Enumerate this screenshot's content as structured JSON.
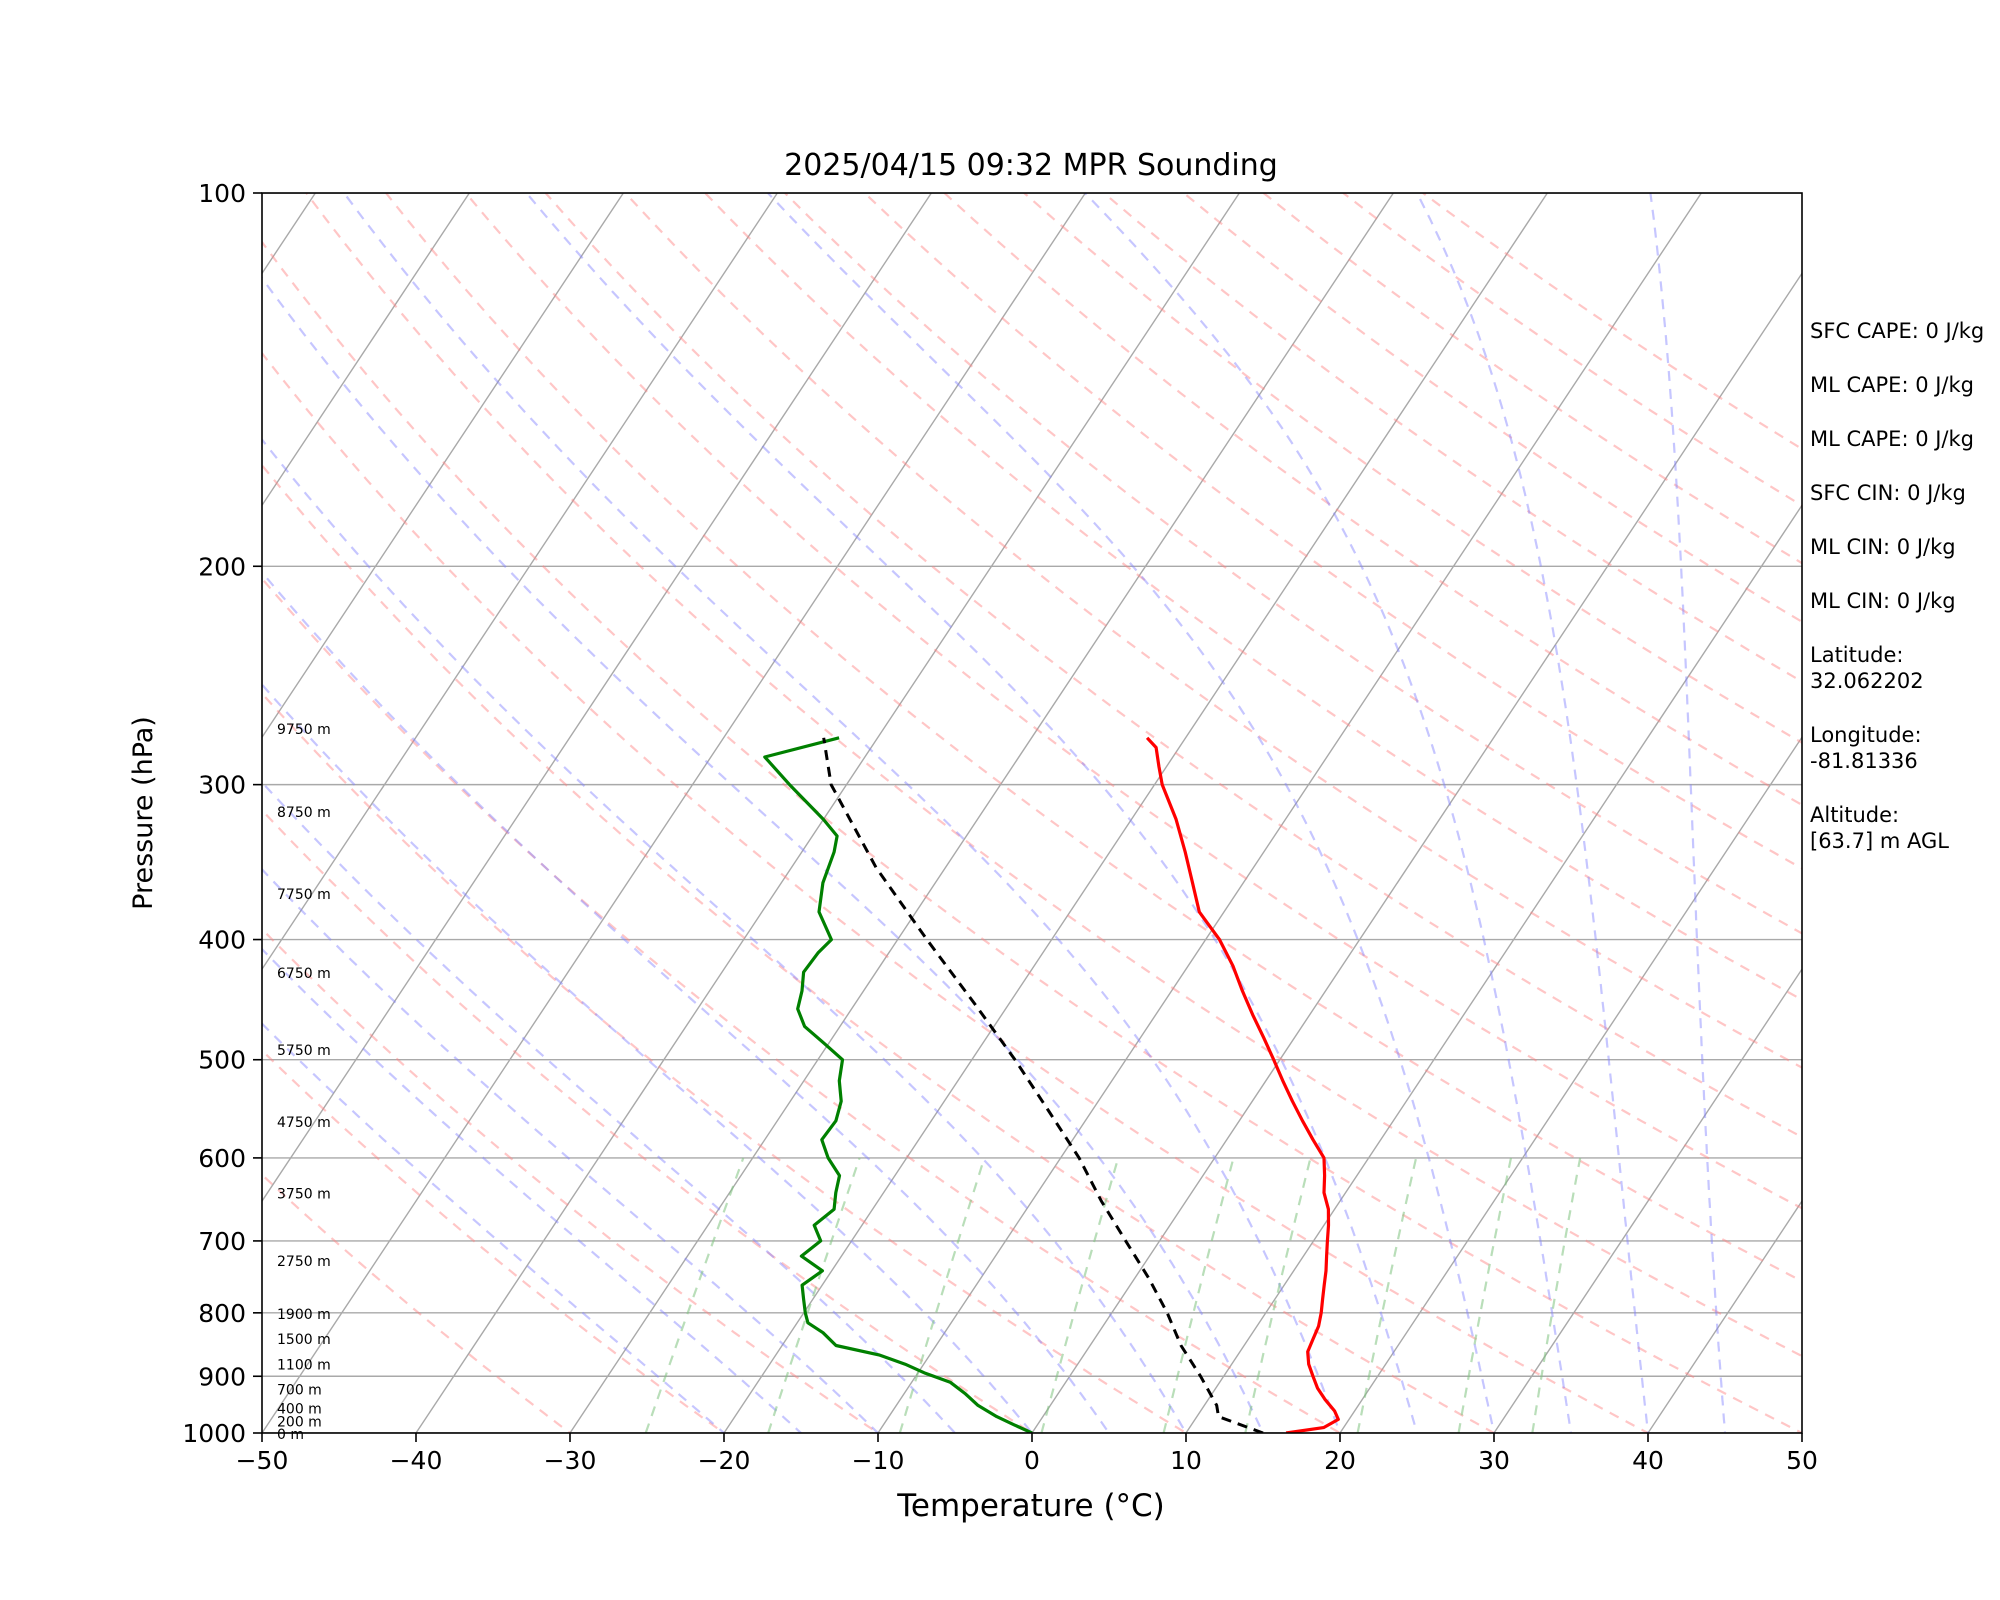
{
  "chart_data": {
    "type": "line",
    "title": "2025/04/15 09:32 MPR Sounding",
    "xlabel": "Temperature (°C)",
    "ylabel": "Pressure (hPa)",
    "xlim": [
      -50,
      50
    ],
    "ylim": [
      1000,
      100
    ],
    "y_scale": "log",
    "x_ticks": [
      "−50",
      "−40",
      "−30",
      "−20",
      "−10",
      "0",
      "10",
      "20",
      "30",
      "40",
      "50"
    ],
    "y_ticks": [
      {
        "p": 100,
        "label": "100"
      },
      {
        "p": 200,
        "label": "200"
      },
      {
        "p": 300,
        "label": "300"
      },
      {
        "p": 400,
        "label": "400"
      },
      {
        "p": 500,
        "label": "500"
      },
      {
        "p": 600,
        "label": "600"
      },
      {
        "p": 700,
        "label": "700"
      },
      {
        "p": 800,
        "label": "800"
      },
      {
        "p": 900,
        "label": "900"
      },
      {
        "p": 1000,
        "label": "1000"
      }
    ],
    "grid": true,
    "series": [
      {
        "role": "temperature",
        "color": "#ff0000",
        "points": [
          [
            1000,
            16.5
          ],
          [
            990,
            18.7
          ],
          [
            975,
            19.3
          ],
          [
            960,
            18.7
          ],
          [
            940,
            17.6
          ],
          [
            920,
            16.6
          ],
          [
            900,
            15.8
          ],
          [
            880,
            15.0
          ],
          [
            860,
            14.4
          ],
          [
            840,
            14.2
          ],
          [
            820,
            14.0
          ],
          [
            800,
            13.6
          ],
          [
            780,
            13.1
          ],
          [
            760,
            12.6
          ],
          [
            740,
            12.1
          ],
          [
            720,
            11.5
          ],
          [
            700,
            10.9
          ],
          [
            680,
            10.3
          ],
          [
            660,
            9.6
          ],
          [
            640,
            8.6
          ],
          [
            620,
            7.9
          ],
          [
            600,
            7.1
          ],
          [
            580,
            5.6
          ],
          [
            560,
            4.1
          ],
          [
            540,
            2.6
          ],
          [
            520,
            1.1
          ],
          [
            500,
            -0.4
          ],
          [
            480,
            -2.0
          ],
          [
            460,
            -3.7
          ],
          [
            440,
            -5.4
          ],
          [
            420,
            -7.1
          ],
          [
            400,
            -9.1
          ],
          [
            380,
            -11.6
          ],
          [
            360,
            -13.3
          ],
          [
            340,
            -15.1
          ],
          [
            320,
            -17.1
          ],
          [
            300,
            -19.5
          ],
          [
            290,
            -20.5
          ],
          [
            280,
            -21.5
          ],
          [
            275,
            -22.5
          ]
        ]
      },
      {
        "role": "dewpoint",
        "color": "#008000",
        "points": [
          [
            1000,
            0.0
          ],
          [
            985,
            -1.5
          ],
          [
            970,
            -3.0
          ],
          [
            950,
            -4.7
          ],
          [
            930,
            -6.0
          ],
          [
            910,
            -7.5
          ],
          [
            895,
            -9.5
          ],
          [
            880,
            -11.2
          ],
          [
            865,
            -13.3
          ],
          [
            850,
            -16.5
          ],
          [
            830,
            -17.9
          ],
          [
            815,
            -19.3
          ],
          [
            800,
            -19.9
          ],
          [
            780,
            -20.6
          ],
          [
            760,
            -21.3
          ],
          [
            740,
            -20.6
          ],
          [
            720,
            -22.6
          ],
          [
            700,
            -22.0
          ],
          [
            680,
            -23.1
          ],
          [
            660,
            -22.5
          ],
          [
            640,
            -23.1
          ],
          [
            620,
            -23.6
          ],
          [
            600,
            -25.1
          ],
          [
            580,
            -26.3
          ],
          [
            560,
            -26.2
          ],
          [
            540,
            -26.7
          ],
          [
            520,
            -27.7
          ],
          [
            500,
            -28.4
          ],
          [
            485,
            -30.3
          ],
          [
            470,
            -32.3
          ],
          [
            455,
            -33.5
          ],
          [
            440,
            -34.0
          ],
          [
            425,
            -34.7
          ],
          [
            410,
            -34.6
          ],
          [
            400,
            -34.3
          ],
          [
            380,
            -36.3
          ],
          [
            360,
            -37.3
          ],
          [
            340,
            -37.9
          ],
          [
            330,
            -38.4
          ],
          [
            320,
            -40.0
          ],
          [
            300,
            -43.7
          ],
          [
            285,
            -46.5
          ],
          [
            275,
            -42.5
          ]
        ]
      },
      {
        "role": "parcel",
        "color": "#000000",
        "dashed": true,
        "points": [
          [
            1000,
            15.0
          ],
          [
            970,
            11.4
          ],
          [
            950,
            10.8
          ],
          [
            900,
            8.5
          ],
          [
            850,
            5.9
          ],
          [
            800,
            3.6
          ],
          [
            750,
            0.9
          ],
          [
            700,
            -2.2
          ],
          [
            650,
            -5.5
          ],
          [
            600,
            -8.8
          ],
          [
            550,
            -12.8
          ],
          [
            500,
            -17.2
          ],
          [
            450,
            -22.3
          ],
          [
            400,
            -28.1
          ],
          [
            350,
            -34.5
          ],
          [
            300,
            -41.0
          ],
          [
            275,
            -43.5
          ]
        ]
      }
    ],
    "height_labels": [
      {
        "p": 1000,
        "label": "0 m"
      },
      {
        "p": 977,
        "label": "200 m"
      },
      {
        "p": 954,
        "label": "400 m"
      },
      {
        "p": 921,
        "label": "700 m"
      },
      {
        "p": 879,
        "label": "1100 m"
      },
      {
        "p": 838,
        "label": "1500 m"
      },
      {
        "p": 800,
        "label": "1900 m"
      },
      {
        "p": 725,
        "label": "2750 m"
      },
      {
        "p": 640,
        "label": "3750 m"
      },
      {
        "p": 560,
        "label": "4750 m"
      },
      {
        "p": 490,
        "label": "5750 m"
      },
      {
        "p": 425,
        "label": "6750 m"
      },
      {
        "p": 367,
        "label": "7750 m"
      },
      {
        "p": 315,
        "label": "8750 m"
      },
      {
        "p": 270,
        "label": "9750 m"
      }
    ],
    "reference_lines": {
      "isotherms": {
        "color": "#a9a9a9"
      },
      "dry_adiabats": {
        "color": "#ff8080",
        "dashed": true
      },
      "moist_adiabats": {
        "color": "#8080ff",
        "dashed": true
      },
      "mixing_ratio": {
        "color": "#7fc27f",
        "dashed": true
      }
    },
    "indices": [
      "SFC CAPE: 0 J/kg",
      "ML CAPE: 0 J/kg",
      "ML CAPE: 0 J/kg",
      "SFC CIN: 0 J/kg",
      "ML CIN: 0 J/kg",
      "ML CIN: 0 J/kg"
    ],
    "location": {
      "latitude_label": "Latitude:",
      "latitude": "32.062202",
      "longitude_label": "Longitude:",
      "longitude": "-81.81336",
      "altitude_label": "Altitude:",
      "altitude": "[63.7] m AGL"
    }
  }
}
